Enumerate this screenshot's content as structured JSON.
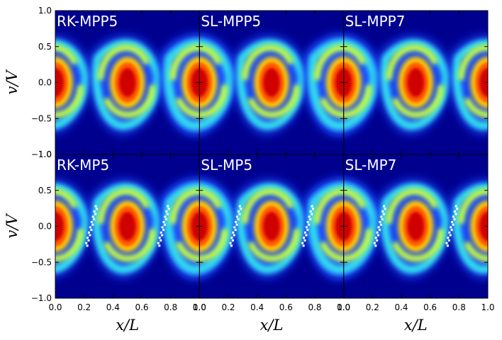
{
  "chart_data": {
    "type": "heatmap",
    "description_free": true,
    "rows": 2,
    "cols": 3,
    "panels": [
      {
        "title": "RK-MPP5",
        "row": 0,
        "col": 0,
        "dots": false
      },
      {
        "title": "SL-MPP5",
        "row": 0,
        "col": 1,
        "dots": false
      },
      {
        "title": "SL-MPP7",
        "row": 0,
        "col": 2,
        "dots": false
      },
      {
        "title": "RK-MP5",
        "row": 1,
        "col": 0,
        "dots": true
      },
      {
        "title": "SL-MP5",
        "row": 1,
        "col": 1,
        "dots": true
      },
      {
        "title": "SL-MP7",
        "row": 1,
        "col": 2,
        "dots": true
      }
    ],
    "xlabel": "x/L",
    "ylabel": "v/V",
    "xlim": [
      0.0,
      1.0
    ],
    "ylim": [
      -1.0,
      1.0
    ],
    "x_ticks": [
      "0.0",
      "0.2",
      "0.4",
      "0.6",
      "0.8",
      "1.0"
    ],
    "y_ticks": [
      "1.0",
      "0.5",
      "0.0",
      "−0.5",
      "−1.0"
    ],
    "colormap": "jet",
    "background_color": "#00008f",
    "dot_color": "#ffffff"
  }
}
